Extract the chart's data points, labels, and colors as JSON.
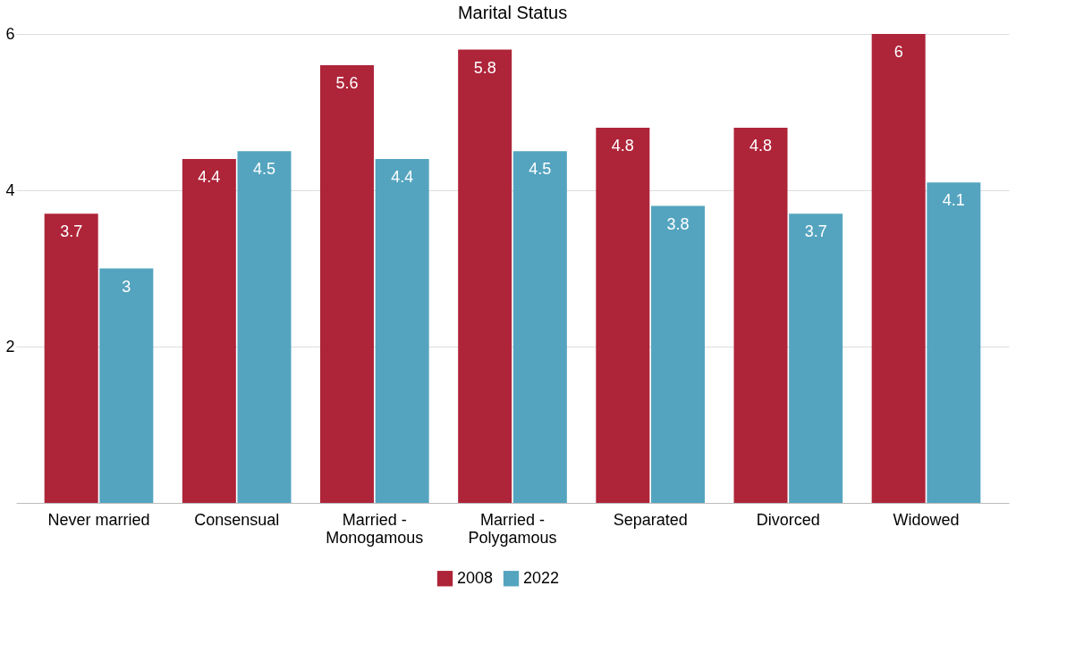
{
  "chart_data": {
    "type": "bar",
    "title": "Marital Status",
    "categories": [
      "Never married",
      "Consensual",
      "Married - Monogamous",
      "Married - Polygamous",
      "Separated",
      "Divorced",
      "Widowed"
    ],
    "series": [
      {
        "name": "2008",
        "color": "#ae2439",
        "values": [
          3.7,
          4.4,
          5.6,
          5.8,
          4.8,
          4.8,
          6
        ]
      },
      {
        "name": "2022",
        "color": "#54a4bf",
        "values": [
          3,
          4.5,
          4.4,
          4.5,
          3.8,
          3.7,
          4.1
        ]
      }
    ],
    "ylim": [
      0,
      6
    ],
    "yticks": [
      2,
      4,
      6
    ],
    "grid": "y",
    "legend": "bottom",
    "data_labels": true
  }
}
